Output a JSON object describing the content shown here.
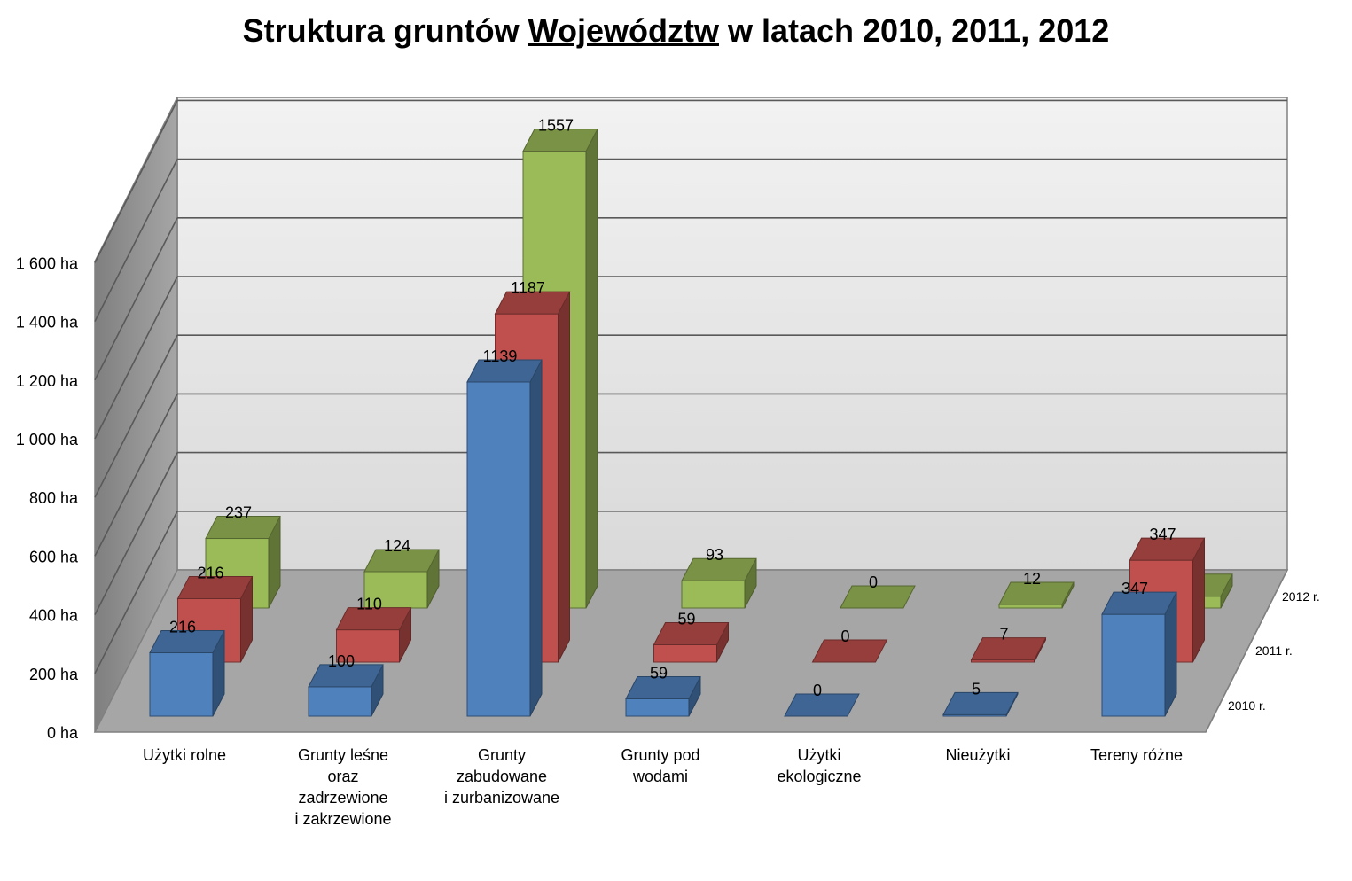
{
  "title": {
    "prefix": "Struktura gruntów ",
    "underlined": "Województw",
    "suffix": " w latach 2010, 2011, 2012"
  },
  "chart_data": {
    "type": "bar",
    "variant": "3d-clustered-depth",
    "title": "Struktura gruntów Województw w latach 2010, 2011, 2012",
    "categories": [
      [
        "Użytki rolne"
      ],
      [
        "Grunty leśne",
        "oraz",
        "zadrzewione",
        "i zakrzewione"
      ],
      [
        "Grunty",
        "zabudowane",
        "i zurbanizowane"
      ],
      [
        "Grunty pod",
        "wodami"
      ],
      [
        "Użytki",
        "ekologiczne"
      ],
      [
        "Nieużytki"
      ],
      [
        "Tereny różne"
      ]
    ],
    "series": [
      {
        "name": "2010 r.",
        "values": [
          216,
          100,
          1139,
          59,
          0,
          5,
          347
        ],
        "color": "#4F81BD"
      },
      {
        "name": "2011 r.",
        "values": [
          216,
          110,
          1187,
          59,
          0,
          7,
          347
        ],
        "color": "#C0504D"
      },
      {
        "name": "2012 r.",
        "values": [
          237,
          124,
          1557,
          93,
          0,
          12,
          40
        ],
        "color": "#9BBB59"
      }
    ],
    "y_ticks": [
      "0 ha",
      "200 ha",
      "400 ha",
      "600 ha",
      "800 ha",
      "1 000 ha",
      "1 200 ha",
      "1 400 ha",
      "1 600 ha"
    ],
    "ylim": [
      0,
      1600
    ],
    "grid": true,
    "legend": "depth axis right"
  }
}
